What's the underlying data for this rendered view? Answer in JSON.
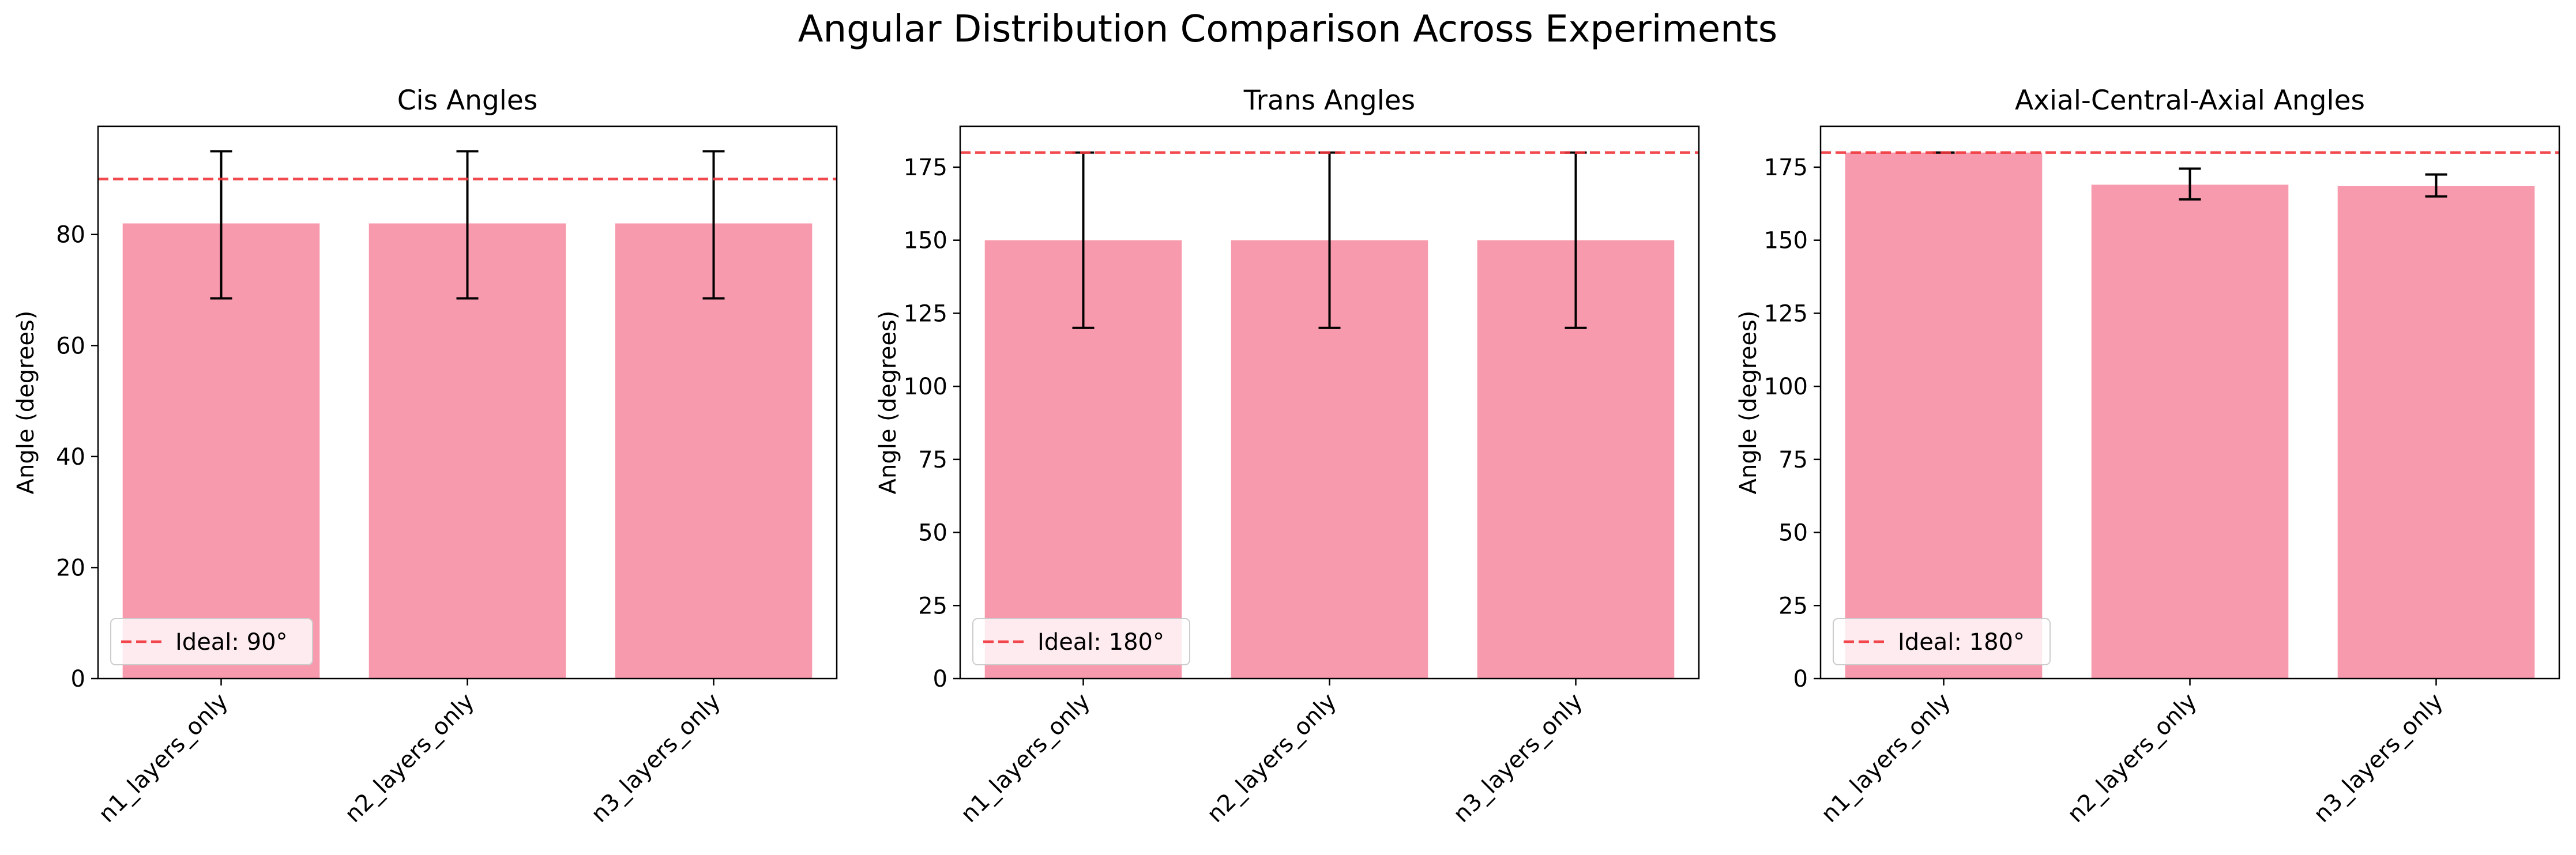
{
  "figure": {
    "title": "Angular Distribution Comparison Across Experiments",
    "bar_color": "#f89aad",
    "error_color": "#000000",
    "ideal_color": "#f0363b"
  },
  "chart_data": [
    {
      "type": "bar",
      "title": "Cis Angles",
      "xlabel": "",
      "ylabel": "Angle (degrees)",
      "categories": [
        "n1_layers_only",
        "n2_layers_only",
        "n3_layers_only"
      ],
      "values": [
        82,
        82,
        82
      ],
      "error_low": [
        68.5,
        68.5,
        68.5
      ],
      "error_high": [
        95,
        95,
        95
      ],
      "ylim": [
        0,
        99.5
      ],
      "yticks": [
        0,
        20,
        40,
        60,
        80
      ],
      "ideal": 90,
      "legend": {
        "label": "Ideal: 90°",
        "placement": "lower-left"
      }
    },
    {
      "type": "bar",
      "title": "Trans Angles",
      "xlabel": "",
      "ylabel": "Angle (degrees)",
      "categories": [
        "n1_layers_only",
        "n2_layers_only",
        "n3_layers_only"
      ],
      "values": [
        150,
        150,
        150
      ],
      "error_low": [
        120,
        120,
        120
      ],
      "error_high": [
        180,
        180,
        180
      ],
      "ylim": [
        0,
        189
      ],
      "yticks": [
        0,
        25,
        50,
        75,
        100,
        125,
        150,
        175
      ],
      "ideal": 180,
      "legend": {
        "label": "Ideal: 180°",
        "placement": "lower-left"
      }
    },
    {
      "type": "bar",
      "title": "Axial-Central-Axial Angles",
      "xlabel": "",
      "ylabel": "Angle (degrees)",
      "categories": [
        "n1_layers_only",
        "n2_layers_only",
        "n3_layers_only"
      ],
      "values": [
        180,
        169,
        168.5
      ],
      "error_low": [
        180,
        164,
        165
      ],
      "error_high": [
        180,
        174.5,
        172.5
      ],
      "ylim": [
        0,
        189
      ],
      "yticks": [
        0,
        25,
        50,
        75,
        100,
        125,
        150,
        175
      ],
      "ideal": 180,
      "legend": {
        "label": "Ideal: 180°",
        "placement": "lower-left"
      }
    }
  ]
}
